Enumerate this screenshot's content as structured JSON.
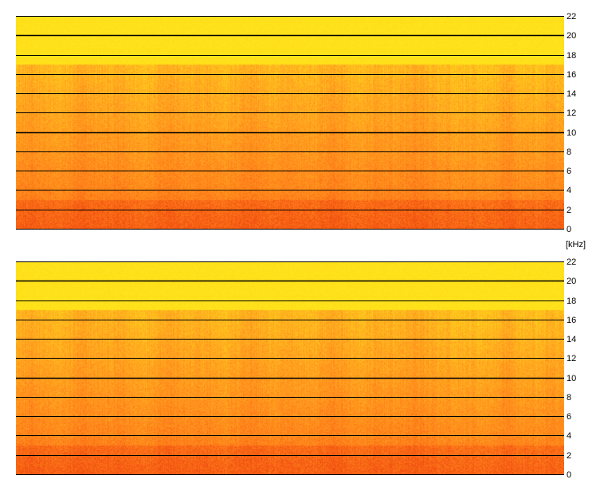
{
  "chart_data": [
    {
      "type": "heatmap",
      "title": "",
      "channel": "top",
      "y_unit": "[kHz]",
      "y_ticks": [
        22,
        20,
        18,
        16,
        14,
        12,
        10,
        8,
        6,
        4,
        2,
        0
      ],
      "ylim": [
        0,
        22
      ],
      "grid": true,
      "colormap": [
        "#ffeb1a",
        "#ffd21a",
        "#ffa820",
        "#ff7d1a",
        "#f04c10"
      ]
    },
    {
      "type": "heatmap",
      "title": "",
      "channel": "bottom",
      "y_unit": "[kHz]",
      "y_ticks": [
        22,
        20,
        18,
        16,
        14,
        12,
        10,
        8,
        6,
        4,
        2,
        0
      ],
      "ylim": [
        0,
        22
      ],
      "grid": true,
      "colormap": [
        "#ffeb1a",
        "#ffd21a",
        "#ffa820",
        "#ff7d1a",
        "#f04c10"
      ]
    }
  ],
  "unit_label": "[kHz]"
}
